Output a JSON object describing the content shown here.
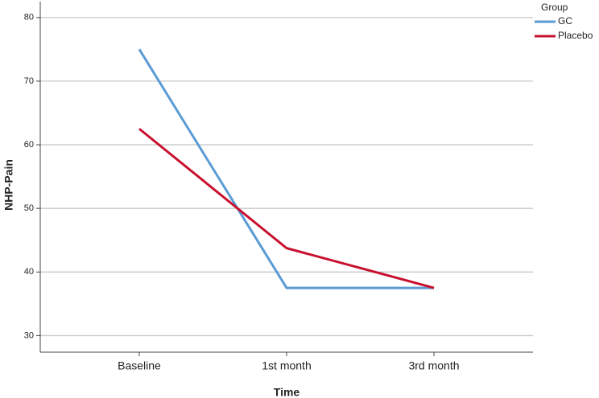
{
  "chart_data": {
    "type": "line",
    "x_label": "Time",
    "y_label": "NHP-Pain",
    "legend_title": "Group",
    "categories": [
      "Baseline",
      "1st month",
      "3rd month"
    ],
    "series": [
      {
        "name": "GC",
        "color": "#5b9bd5",
        "values": [
          75,
          37.5,
          37.5
        ]
      },
      {
        "name": "Placebo",
        "color": "#c8102e",
        "values": [
          62.5,
          43.75,
          37.5
        ]
      }
    ],
    "ylim": [
      27.4,
      82.5
    ],
    "yticks": [
      30,
      40,
      50,
      60,
      70,
      80
    ],
    "grid": true
  }
}
